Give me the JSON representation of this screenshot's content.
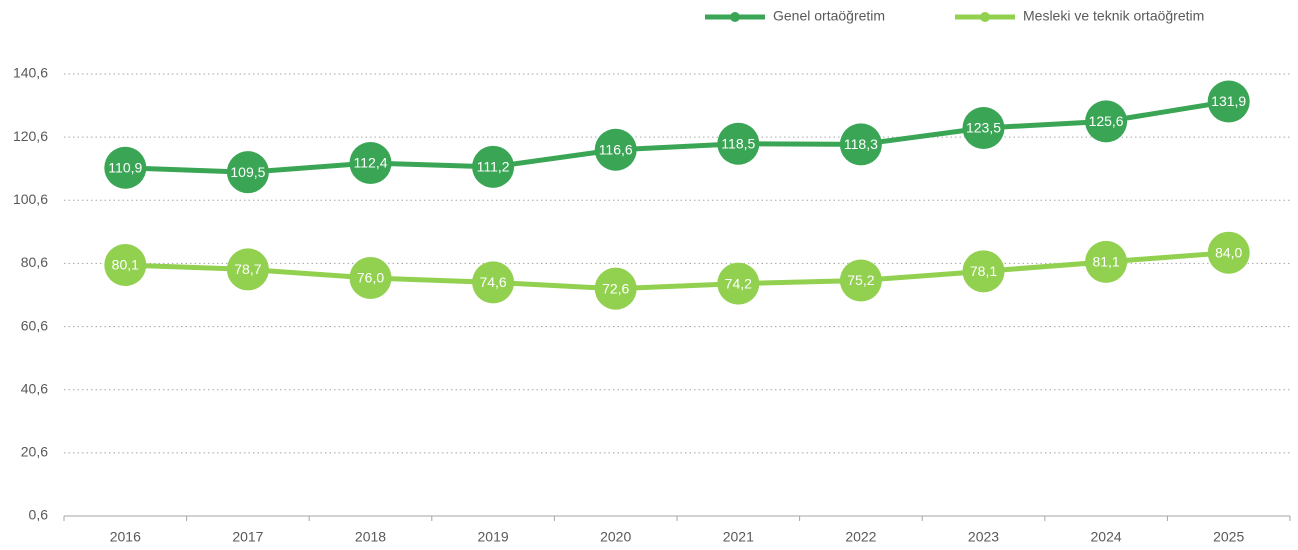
{
  "chart_data": {
    "type": "line",
    "categories": [
      "2016",
      "2017",
      "2018",
      "2019",
      "2020",
      "2021",
      "2022",
      "2023",
      "2024",
      "2025"
    ],
    "series": [
      {
        "name": "Genel ortaöğretim",
        "color": "#3aa655",
        "values": [
          110.9,
          109.5,
          112.4,
          111.2,
          116.6,
          118.5,
          118.3,
          123.5,
          125.6,
          131.9
        ],
        "value_labels": [
          "110,9",
          "109,5",
          "112,4",
          "111,2",
          "116,6",
          "118,5",
          "118,3",
          "123,5",
          "125,6",
          "131,9"
        ]
      },
      {
        "name": "Mesleki ve teknik ortaöğretim",
        "color": "#92d050",
        "values": [
          80.1,
          78.7,
          76.0,
          74.6,
          72.6,
          74.2,
          75.2,
          78.1,
          81.1,
          84.0
        ],
        "value_labels": [
          "80,1",
          "78,7",
          "76,0",
          "74,6",
          "72,6",
          "74,2",
          "75,2",
          "78,1",
          "81,1",
          "84,0"
        ]
      }
    ],
    "ylim": [
      0.6,
      140.6
    ],
    "yticks": [
      {
        "value": 0.6,
        "label": "0,6"
      },
      {
        "value": 20.6,
        "label": "20,6"
      },
      {
        "value": 40.6,
        "label": "40,6"
      },
      {
        "value": 60.6,
        "label": "60,6"
      },
      {
        "value": 80.6,
        "label": "80,6"
      },
      {
        "value": 100.6,
        "label": "100,6"
      },
      {
        "value": 120.6,
        "label": "120,6"
      },
      {
        "value": 140.6,
        "label": "140,6"
      }
    ],
    "grid": true,
    "legend": "top-right"
  }
}
